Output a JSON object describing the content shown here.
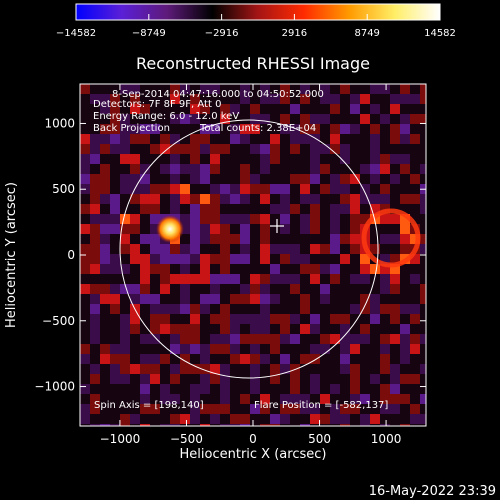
{
  "colorbar": {
    "ticks": [
      "−14582",
      "−8749",
      "−2916",
      "2916",
      "8749",
      "14582"
    ],
    "colors": [
      "#0000ff",
      "#5a1fd6",
      "#5e1a7a",
      "#000000",
      "#a51515",
      "#ff2a00",
      "#ff9a00",
      "#ffee66",
      "#ffffff"
    ]
  },
  "image": {
    "title": "Reconstructed RHESSI Image",
    "info": [
      "8-Sep-2014 04:47:16.000 to 04:50:52.000",
      "Detectors: 7F 8F 9F, Att 0",
      "Energy Range: 6.0 - 12.0 keV",
      "Back Projection"
    ],
    "total_counts": "Total counts: 2.38E+04",
    "spin_axis": "Spin Axis = [198,140]",
    "flare_position": "Flare Position = [-582,137]",
    "timestamp": "16-May-2022 23:39"
  },
  "chart_data": {
    "type": "heatmap",
    "title": "Reconstructed RHESSI Image",
    "xlabel": "Heliocentric X (arcsec)",
    "ylabel": "Heliocentric Y (arcsec)",
    "xlim": [
      -1300,
      1300
    ],
    "ylim": [
      -1300,
      1300
    ],
    "xticks": [
      -1000,
      -500,
      0,
      500,
      1000
    ],
    "yticks": [
      -1000,
      -500,
      0,
      500,
      1000
    ],
    "xtick_labels": [
      "−1000",
      "−500",
      "0",
      "500",
      "1000"
    ],
    "ytick_labels": [
      "−1000",
      "−500",
      "0",
      "500",
      "1000"
    ],
    "colorbar_range": [
      -14582,
      14582
    ],
    "solar_limb": {
      "center": [
        0,
        0
      ],
      "radius_arcsec": 950
    },
    "flare_source": {
      "x": -582,
      "y": 137
    },
    "spin_axis_marker": {
      "x": 198,
      "y": 140
    },
    "ring_source": {
      "x": 1000,
      "y": 100,
      "radius_arcsec": 230
    }
  }
}
